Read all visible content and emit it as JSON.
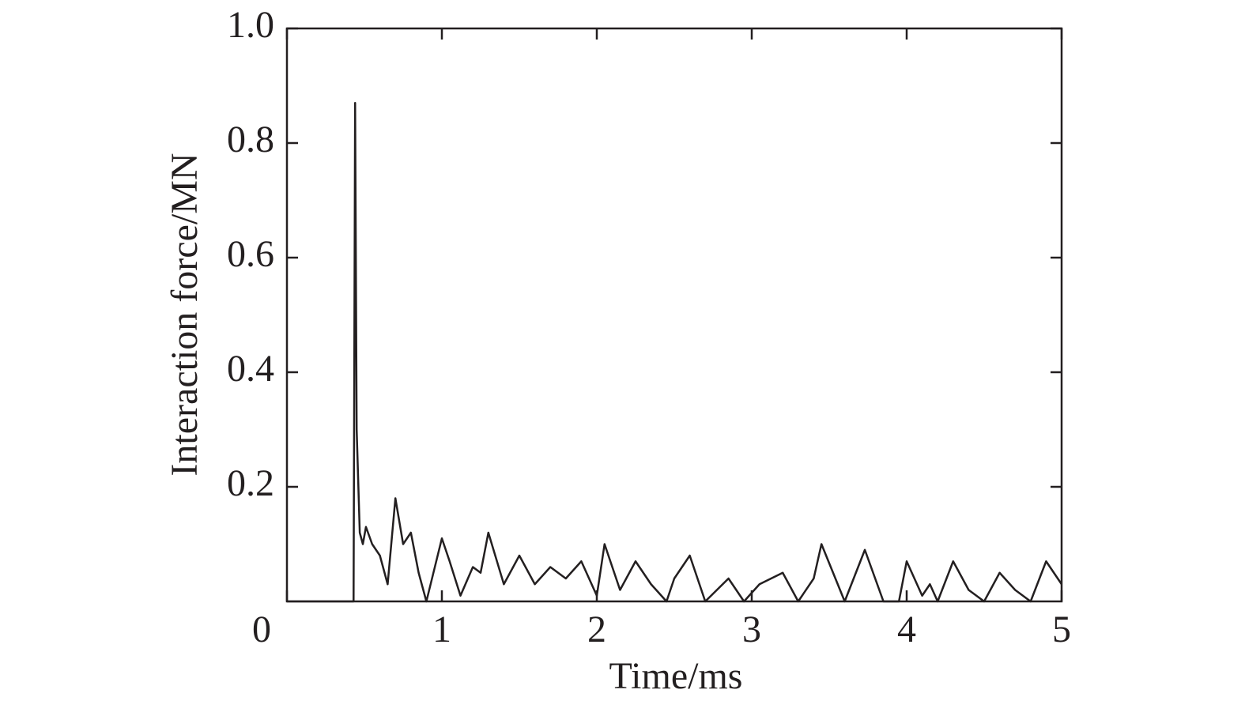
{
  "chart_data": {
    "type": "line",
    "x_label": "Time/ms",
    "y_label": "Interaction force/MN",
    "x": [
      0,
      0.43,
      0.44,
      0.45,
      0.47,
      0.49,
      0.51,
      0.55,
      0.6,
      0.65,
      0.7,
      0.75,
      0.8,
      0.85,
      0.9,
      1.0,
      1.05,
      1.12,
      1.2,
      1.25,
      1.3,
      1.4,
      1.5,
      1.6,
      1.7,
      1.8,
      1.9,
      2.0,
      2.05,
      2.15,
      2.25,
      2.35,
      2.45,
      2.5,
      2.6,
      2.7,
      2.85,
      2.95,
      3.05,
      3.2,
      3.3,
      3.4,
      3.45,
      3.6,
      3.73,
      3.85,
      3.95,
      4.0,
      4.1,
      4.15,
      4.2,
      4.3,
      4.4,
      4.5,
      4.6,
      4.7,
      4.8,
      4.9,
      5.0
    ],
    "series": [
      {
        "color": "#231f20",
        "values": [
          0,
          0,
          0.87,
          0.3,
          0.12,
          0.1,
          0.13,
          0.1,
          0.08,
          0.03,
          0.18,
          0.1,
          0.12,
          0.05,
          0.0,
          0.11,
          0.07,
          0.01,
          0.06,
          0.05,
          0.12,
          0.03,
          0.08,
          0.03,
          0.06,
          0.04,
          0.07,
          0.01,
          0.1,
          0.02,
          0.07,
          0.03,
          0.0,
          0.04,
          0.08,
          0.0,
          0.04,
          0.0,
          0.03,
          0.05,
          0.0,
          0.04,
          0.1,
          0.0,
          0.09,
          0.0,
          0.0,
          0.07,
          0.01,
          0.03,
          0.0,
          0.07,
          0.02,
          0.0,
          0.05,
          0.02,
          0.0,
          0.07,
          0.03
        ]
      }
    ],
    "xlim": [
      0,
      5
    ],
    "ylim": [
      0,
      1
    ],
    "xticks": [
      0,
      1,
      2,
      3,
      4,
      5
    ],
    "yticks": [
      0.2,
      0.4,
      0.6,
      0.8,
      {
        "value": 1,
        "label": "1.0"
      }
    ],
    "grid": false
  }
}
